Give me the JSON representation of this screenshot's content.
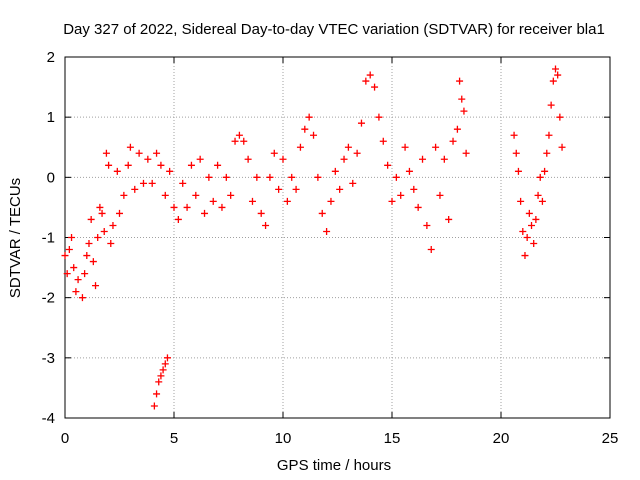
{
  "chart_data": {
    "type": "scatter",
    "title": "Day 327 of 2022, Sidereal Day-to-day VTEC variation (SDTVAR) for receiver bla1",
    "xlabel": "GPS time / hours",
    "ylabel": "SDTVAR / TECUs",
    "xlim": [
      0,
      25
    ],
    "ylim": [
      -4,
      2
    ],
    "xticks": [
      0,
      5,
      10,
      15,
      20,
      25
    ],
    "yticks": [
      -4,
      -3,
      -2,
      -1,
      0,
      1,
      2
    ],
    "xtick_labels": [
      "0",
      "5",
      "10",
      "15",
      "20",
      "25"
    ],
    "ytick_labels": [
      "-4",
      "-3",
      "-2",
      "-1",
      "0",
      "1",
      "2"
    ],
    "grid": true,
    "marker": "+",
    "color": "#ff0000",
    "series": [
      {
        "name": "SDTVAR",
        "points": [
          [
            0.0,
            -1.3
          ],
          [
            0.1,
            -1.6
          ],
          [
            0.2,
            -1.2
          ],
          [
            0.3,
            -1.0
          ],
          [
            0.4,
            -1.5
          ],
          [
            0.5,
            -1.9
          ],
          [
            0.6,
            -1.7
          ],
          [
            0.8,
            -2.0
          ],
          [
            0.9,
            -1.6
          ],
          [
            1.0,
            -1.3
          ],
          [
            1.1,
            -1.1
          ],
          [
            1.2,
            -0.7
          ],
          [
            1.3,
            -1.4
          ],
          [
            1.4,
            -1.8
          ],
          [
            1.5,
            -1.0
          ],
          [
            1.6,
            -0.5
          ],
          [
            1.7,
            -0.6
          ],
          [
            1.8,
            -0.9
          ],
          [
            1.9,
            0.4
          ],
          [
            2.0,
            0.2
          ],
          [
            2.1,
            -1.1
          ],
          [
            2.2,
            -0.8
          ],
          [
            2.4,
            0.1
          ],
          [
            2.5,
            -0.6
          ],
          [
            2.7,
            -0.3
          ],
          [
            2.9,
            0.2
          ],
          [
            3.0,
            0.5
          ],
          [
            3.2,
            -0.2
          ],
          [
            3.4,
            0.4
          ],
          [
            3.6,
            -0.1
          ],
          [
            3.8,
            0.3
          ],
          [
            4.0,
            -0.1
          ],
          [
            4.1,
            -3.8
          ],
          [
            4.2,
            -3.6
          ],
          [
            4.3,
            -3.4
          ],
          [
            4.4,
            -3.3
          ],
          [
            4.5,
            -3.2
          ],
          [
            4.6,
            -3.1
          ],
          [
            4.7,
            -3.0
          ],
          [
            4.2,
            0.4
          ],
          [
            4.4,
            0.2
          ],
          [
            4.6,
            -0.3
          ],
          [
            4.8,
            0.1
          ],
          [
            5.0,
            -0.5
          ],
          [
            5.2,
            -0.7
          ],
          [
            5.4,
            -0.1
          ],
          [
            5.6,
            -0.5
          ],
          [
            5.8,
            0.2
          ],
          [
            6.0,
            -0.3
          ],
          [
            6.2,
            0.3
          ],
          [
            6.4,
            -0.6
          ],
          [
            6.6,
            0.0
          ],
          [
            6.8,
            -0.4
          ],
          [
            7.0,
            0.2
          ],
          [
            7.2,
            -0.5
          ],
          [
            7.4,
            0.0
          ],
          [
            7.6,
            -0.3
          ],
          [
            7.8,
            0.6
          ],
          [
            8.0,
            0.7
          ],
          [
            8.2,
            0.6
          ],
          [
            8.4,
            0.3
          ],
          [
            8.6,
            -0.4
          ],
          [
            8.8,
            0.0
          ],
          [
            9.0,
            -0.6
          ],
          [
            9.2,
            -0.8
          ],
          [
            9.4,
            0.0
          ],
          [
            9.6,
            0.4
          ],
          [
            9.8,
            -0.2
          ],
          [
            10.0,
            0.3
          ],
          [
            10.2,
            -0.4
          ],
          [
            10.4,
            0.0
          ],
          [
            10.6,
            -0.2
          ],
          [
            10.8,
            0.5
          ],
          [
            11.0,
            0.8
          ],
          [
            11.2,
            1.0
          ],
          [
            11.4,
            0.7
          ],
          [
            11.6,
            0.0
          ],
          [
            11.8,
            -0.6
          ],
          [
            12.0,
            -0.9
          ],
          [
            12.2,
            -0.4
          ],
          [
            12.4,
            0.1
          ],
          [
            12.6,
            -0.2
          ],
          [
            12.8,
            0.3
          ],
          [
            13.0,
            0.5
          ],
          [
            13.2,
            -0.1
          ],
          [
            13.4,
            0.4
          ],
          [
            13.6,
            0.9
          ],
          [
            13.8,
            1.6
          ],
          [
            14.0,
            1.7
          ],
          [
            14.2,
            1.5
          ],
          [
            14.4,
            1.0
          ],
          [
            14.6,
            0.6
          ],
          [
            14.8,
            0.2
          ],
          [
            15.0,
            -0.4
          ],
          [
            15.2,
            0.0
          ],
          [
            15.4,
            -0.3
          ],
          [
            15.6,
            0.5
          ],
          [
            15.8,
            0.1
          ],
          [
            16.0,
            -0.2
          ],
          [
            16.2,
            -0.5
          ],
          [
            16.4,
            0.3
          ],
          [
            16.6,
            -0.8
          ],
          [
            16.8,
            -1.2
          ],
          [
            17.0,
            0.5
          ],
          [
            17.2,
            -0.3
          ],
          [
            17.4,
            0.3
          ],
          [
            17.6,
            -0.7
          ],
          [
            17.8,
            0.6
          ],
          [
            18.0,
            0.8
          ],
          [
            18.1,
            1.6
          ],
          [
            18.2,
            1.3
          ],
          [
            18.3,
            1.1
          ],
          [
            18.4,
            0.4
          ],
          [
            20.6,
            0.7
          ],
          [
            20.7,
            0.4
          ],
          [
            20.8,
            0.1
          ],
          [
            20.9,
            -0.4
          ],
          [
            21.0,
            -0.9
          ],
          [
            21.1,
            -1.3
          ],
          [
            21.2,
            -1.0
          ],
          [
            21.3,
            -0.6
          ],
          [
            21.4,
            -0.8
          ],
          [
            21.5,
            -1.1
          ],
          [
            21.6,
            -0.7
          ],
          [
            21.7,
            -0.3
          ],
          [
            21.8,
            0.0
          ],
          [
            21.9,
            -0.4
          ],
          [
            22.0,
            0.1
          ],
          [
            22.1,
            0.4
          ],
          [
            22.2,
            0.7
          ],
          [
            22.3,
            1.2
          ],
          [
            22.4,
            1.6
          ],
          [
            22.5,
            1.8
          ],
          [
            22.6,
            1.7
          ],
          [
            22.7,
            1.0
          ],
          [
            22.8,
            0.5
          ]
        ]
      }
    ]
  }
}
